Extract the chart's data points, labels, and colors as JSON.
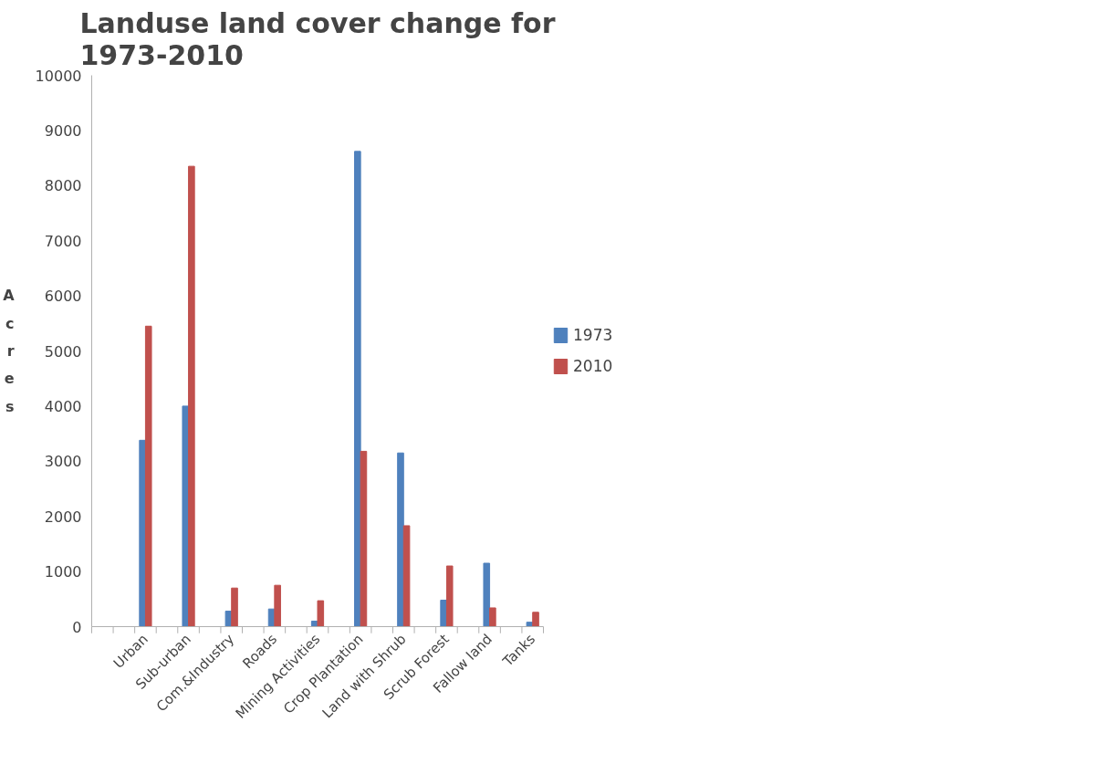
{
  "chart_data": {
    "type": "bar",
    "title": "Landuse land cover change for\n1973-2010",
    "ylabel": "Acres",
    "categories": [
      null,
      null,
      "Urban",
      null,
      "Sub-urban",
      null,
      "Com.&Industry",
      null,
      "Roads",
      null,
      "Mining Activities",
      null,
      "Crop Plantation",
      null,
      "Land with Shrub",
      null,
      "Scrub Forest",
      null,
      "Fallow land",
      null,
      "Tanks"
    ],
    "series": [
      {
        "name": "1973",
        "color": "#4f81bd",
        "values": [
          null,
          null,
          3380,
          null,
          4000,
          null,
          280,
          null,
          320,
          null,
          100,
          null,
          8620,
          null,
          3150,
          null,
          480,
          null,
          1150,
          null,
          80
        ]
      },
      {
        "name": "2010",
        "color": "#c0504d",
        "values": [
          null,
          null,
          5450,
          null,
          8350,
          null,
          700,
          null,
          750,
          null,
          470,
          null,
          3180,
          null,
          1830,
          null,
          1100,
          null,
          340,
          null,
          260
        ]
      }
    ],
    "ylim": [
      0,
      10000
    ],
    "yticks": [
      0,
      1000,
      2000,
      3000,
      4000,
      5000,
      6000,
      7000,
      8000,
      9000,
      10000
    ],
    "grid": false,
    "legend": "right"
  }
}
